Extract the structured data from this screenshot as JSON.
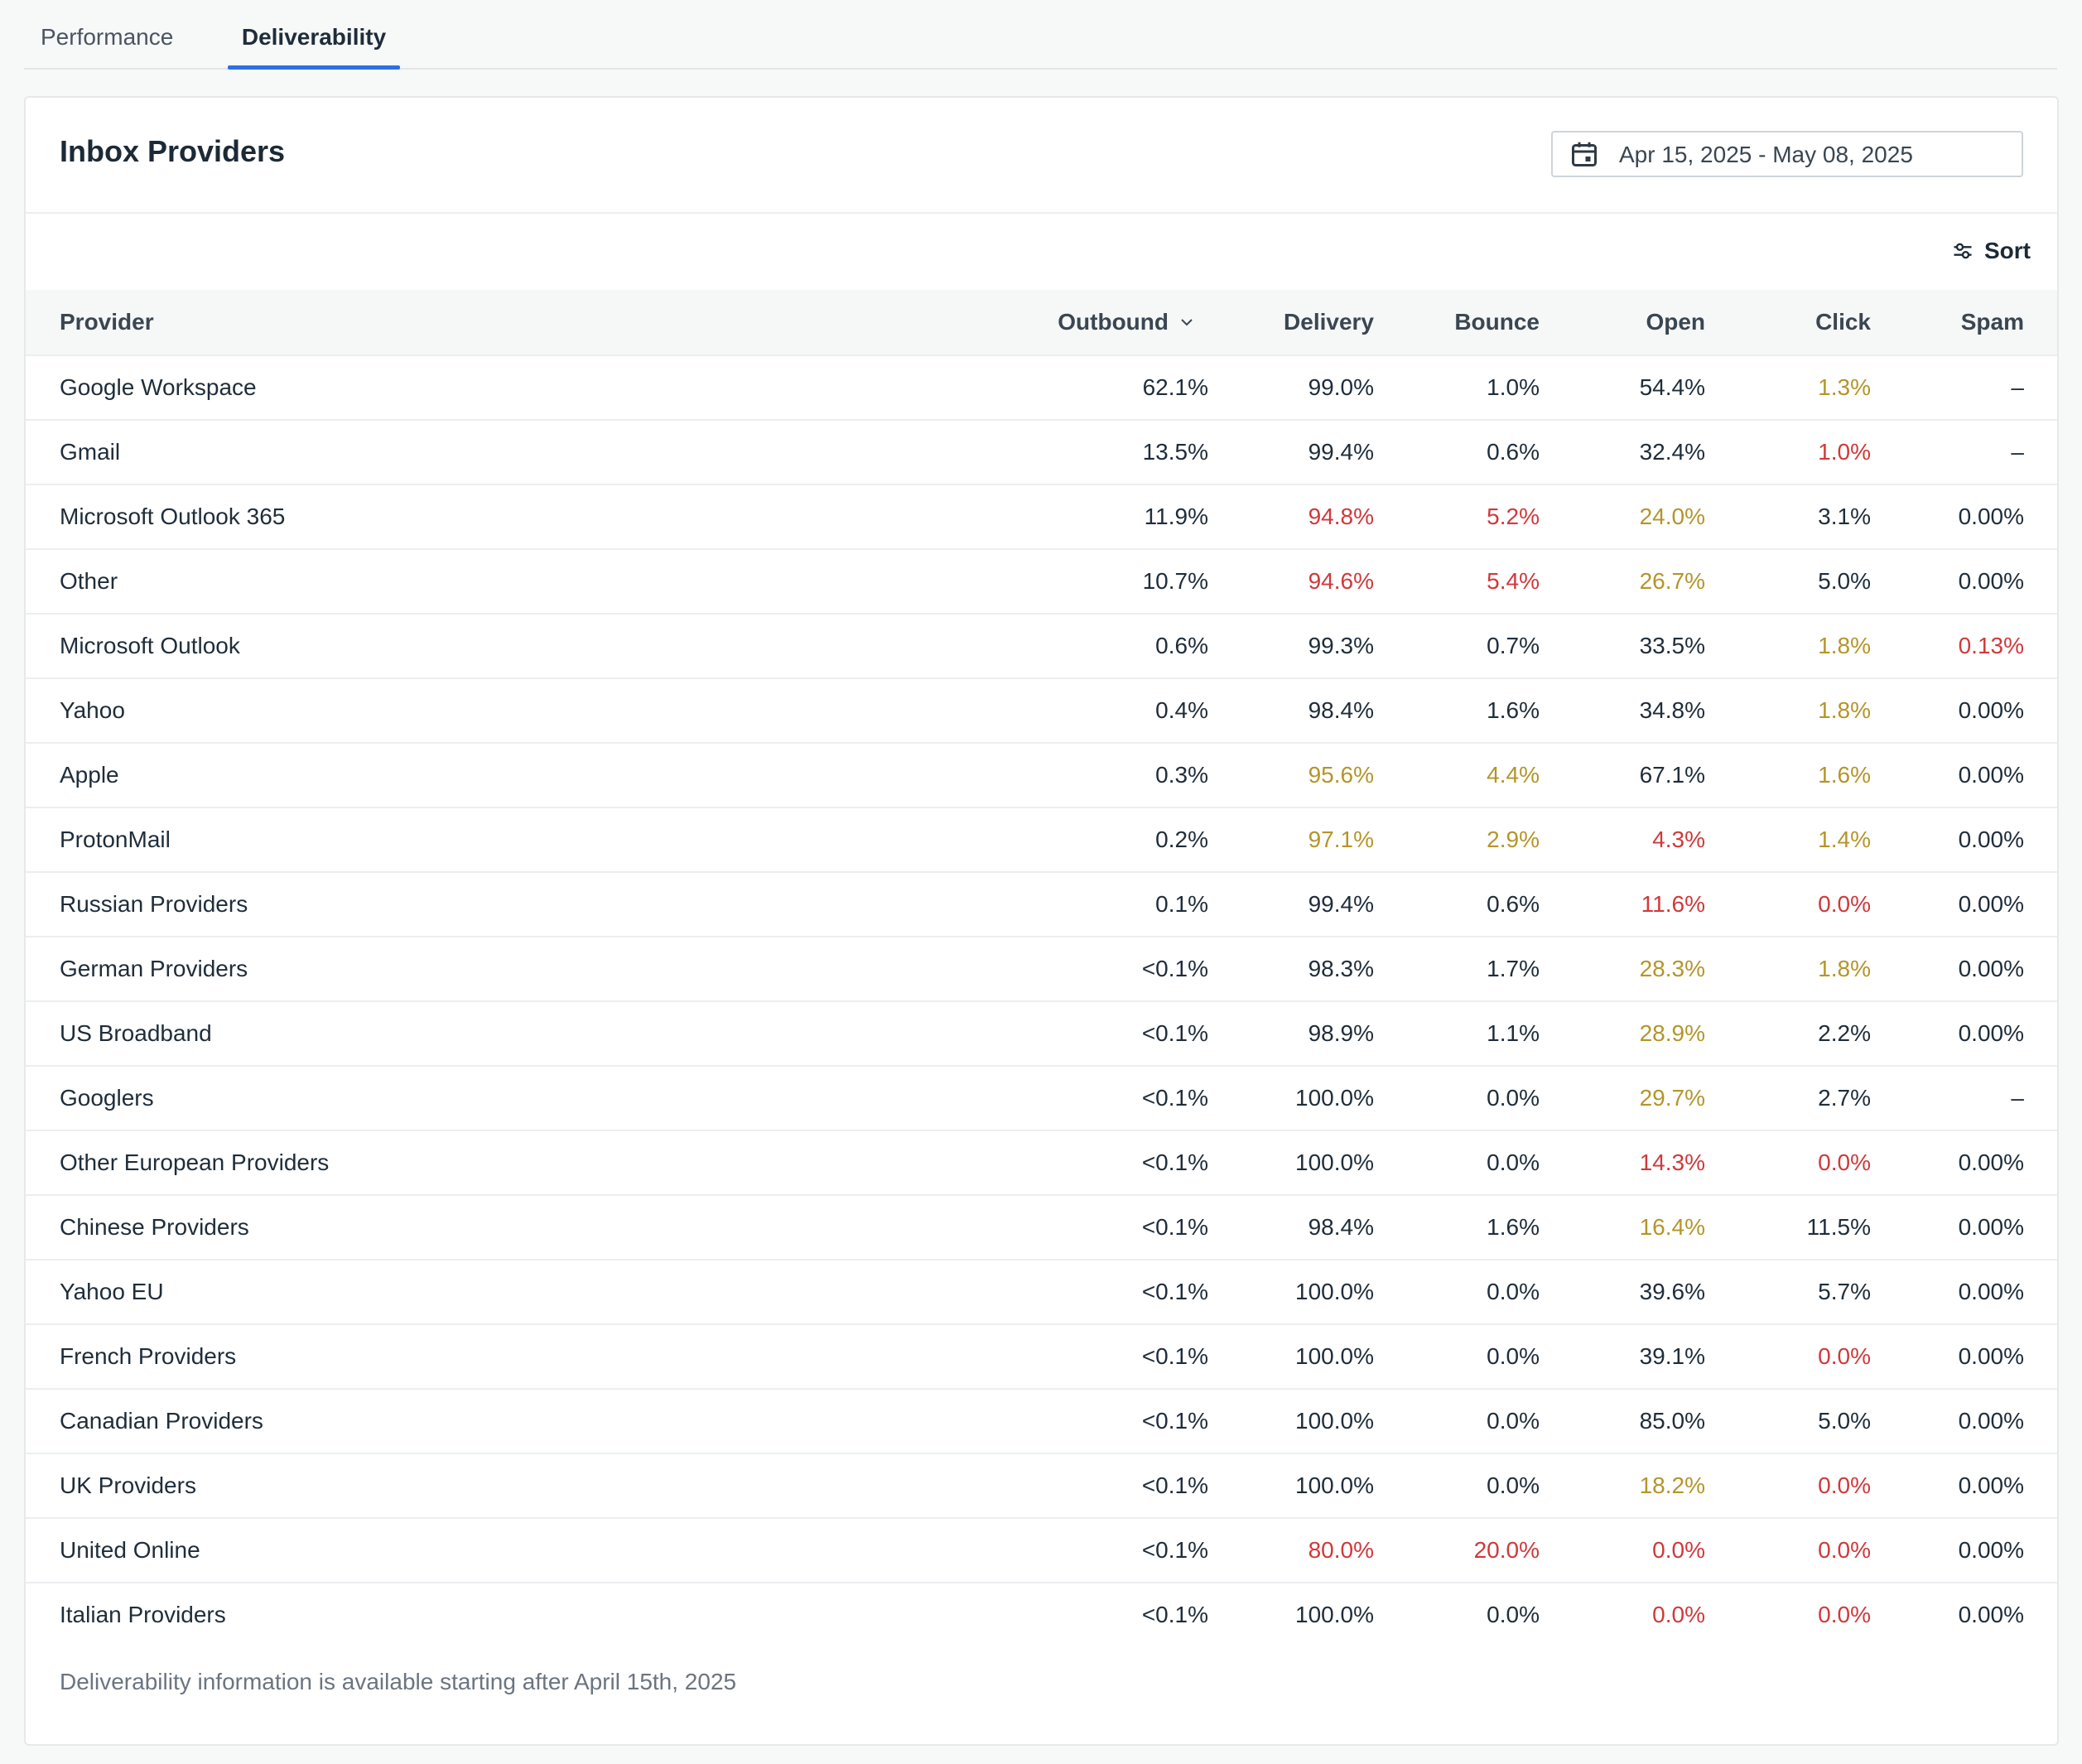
{
  "tabs": [
    {
      "label": "Performance",
      "active": false
    },
    {
      "label": "Deliverability",
      "active": true
    }
  ],
  "card": {
    "title": "Inbox Providers",
    "date_range": "Apr 15, 2025 - May 08, 2025",
    "date_range_icon": "calendar-icon",
    "sort_label": "Sort",
    "sort_icon": "sliders-icon",
    "footer_note": "Deliverability information is available starting after April 15th, 2025"
  },
  "colors": {
    "tab_active_underline": "#2f6fe4",
    "value_normal": "#1f2d3a",
    "value_warning": "#b4952a",
    "value_bad": "#d0393b"
  },
  "table": {
    "columns": {
      "provider": "Provider",
      "outbound": "Outbound",
      "delivery": "Delivery",
      "bounce": "Bounce",
      "open": "Open",
      "click": "Click",
      "spam": "Spam"
    },
    "sorted_by": "outbound",
    "sort_icon": "chevron-down-icon",
    "rows": [
      {
        "provider": "Google Workspace",
        "outbound": "62.1%",
        "delivery": "99.0%",
        "bounce": "1.0%",
        "open": "54.4%",
        "click": "1.3%",
        "spam": "–",
        "status": {
          "delivery": "good",
          "bounce": "good",
          "open": "good",
          "click": "warn",
          "spam": "good"
        }
      },
      {
        "provider": "Gmail",
        "outbound": "13.5%",
        "delivery": "99.4%",
        "bounce": "0.6%",
        "open": "32.4%",
        "click": "1.0%",
        "spam": "–",
        "status": {
          "delivery": "good",
          "bounce": "good",
          "open": "good",
          "click": "bad",
          "spam": "good"
        }
      },
      {
        "provider": "Microsoft Outlook 365",
        "outbound": "11.9%",
        "delivery": "94.8%",
        "bounce": "5.2%",
        "open": "24.0%",
        "click": "3.1%",
        "spam": "0.00%",
        "status": {
          "delivery": "bad",
          "bounce": "bad",
          "open": "warn",
          "click": "good",
          "spam": "good"
        }
      },
      {
        "provider": "Other",
        "outbound": "10.7%",
        "delivery": "94.6%",
        "bounce": "5.4%",
        "open": "26.7%",
        "click": "5.0%",
        "spam": "0.00%",
        "status": {
          "delivery": "bad",
          "bounce": "bad",
          "open": "warn",
          "click": "good",
          "spam": "good"
        }
      },
      {
        "provider": "Microsoft Outlook",
        "outbound": "0.6%",
        "delivery": "99.3%",
        "bounce": "0.7%",
        "open": "33.5%",
        "click": "1.8%",
        "spam": "0.13%",
        "status": {
          "delivery": "good",
          "bounce": "good",
          "open": "good",
          "click": "warn",
          "spam": "bad"
        }
      },
      {
        "provider": "Yahoo",
        "outbound": "0.4%",
        "delivery": "98.4%",
        "bounce": "1.6%",
        "open": "34.8%",
        "click": "1.8%",
        "spam": "0.00%",
        "status": {
          "delivery": "good",
          "bounce": "good",
          "open": "good",
          "click": "warn",
          "spam": "good"
        }
      },
      {
        "provider": "Apple",
        "outbound": "0.3%",
        "delivery": "95.6%",
        "bounce": "4.4%",
        "open": "67.1%",
        "click": "1.6%",
        "spam": "0.00%",
        "status": {
          "delivery": "warn",
          "bounce": "warn",
          "open": "good",
          "click": "warn",
          "spam": "good"
        }
      },
      {
        "provider": "ProtonMail",
        "outbound": "0.2%",
        "delivery": "97.1%",
        "bounce": "2.9%",
        "open": "4.3%",
        "click": "1.4%",
        "spam": "0.00%",
        "status": {
          "delivery": "warn",
          "bounce": "warn",
          "open": "bad",
          "click": "warn",
          "spam": "good"
        }
      },
      {
        "provider": "Russian Providers",
        "outbound": "0.1%",
        "delivery": "99.4%",
        "bounce": "0.6%",
        "open": "11.6%",
        "click": "0.0%",
        "spam": "0.00%",
        "status": {
          "delivery": "good",
          "bounce": "good",
          "open": "bad",
          "click": "bad",
          "spam": "good"
        }
      },
      {
        "provider": "German Providers",
        "outbound": "<0.1%",
        "delivery": "98.3%",
        "bounce": "1.7%",
        "open": "28.3%",
        "click": "1.8%",
        "spam": "0.00%",
        "status": {
          "delivery": "good",
          "bounce": "good",
          "open": "warn",
          "click": "warn",
          "spam": "good"
        }
      },
      {
        "provider": "US Broadband",
        "outbound": "<0.1%",
        "delivery": "98.9%",
        "bounce": "1.1%",
        "open": "28.9%",
        "click": "2.2%",
        "spam": "0.00%",
        "status": {
          "delivery": "good",
          "bounce": "good",
          "open": "warn",
          "click": "good",
          "spam": "good"
        }
      },
      {
        "provider": "Googlers",
        "outbound": "<0.1%",
        "delivery": "100.0%",
        "bounce": "0.0%",
        "open": "29.7%",
        "click": "2.7%",
        "spam": "–",
        "status": {
          "delivery": "good",
          "bounce": "good",
          "open": "warn",
          "click": "good",
          "spam": "good"
        }
      },
      {
        "provider": "Other European Providers",
        "outbound": "<0.1%",
        "delivery": "100.0%",
        "bounce": "0.0%",
        "open": "14.3%",
        "click": "0.0%",
        "spam": "0.00%",
        "status": {
          "delivery": "good",
          "bounce": "good",
          "open": "bad",
          "click": "bad",
          "spam": "good"
        }
      },
      {
        "provider": "Chinese Providers",
        "outbound": "<0.1%",
        "delivery": "98.4%",
        "bounce": "1.6%",
        "open": "16.4%",
        "click": "11.5%",
        "spam": "0.00%",
        "status": {
          "delivery": "good",
          "bounce": "good",
          "open": "warn",
          "click": "good",
          "spam": "good"
        }
      },
      {
        "provider": "Yahoo EU",
        "outbound": "<0.1%",
        "delivery": "100.0%",
        "bounce": "0.0%",
        "open": "39.6%",
        "click": "5.7%",
        "spam": "0.00%",
        "status": {
          "delivery": "good",
          "bounce": "good",
          "open": "good",
          "click": "good",
          "spam": "good"
        }
      },
      {
        "provider": "French Providers",
        "outbound": "<0.1%",
        "delivery": "100.0%",
        "bounce": "0.0%",
        "open": "39.1%",
        "click": "0.0%",
        "spam": "0.00%",
        "status": {
          "delivery": "good",
          "bounce": "good",
          "open": "good",
          "click": "bad",
          "spam": "good"
        }
      },
      {
        "provider": "Canadian Providers",
        "outbound": "<0.1%",
        "delivery": "100.0%",
        "bounce": "0.0%",
        "open": "85.0%",
        "click": "5.0%",
        "spam": "0.00%",
        "status": {
          "delivery": "good",
          "bounce": "good",
          "open": "good",
          "click": "good",
          "spam": "good"
        }
      },
      {
        "provider": "UK Providers",
        "outbound": "<0.1%",
        "delivery": "100.0%",
        "bounce": "0.0%",
        "open": "18.2%",
        "click": "0.0%",
        "spam": "0.00%",
        "status": {
          "delivery": "good",
          "bounce": "good",
          "open": "warn",
          "click": "bad",
          "spam": "good"
        }
      },
      {
        "provider": "United Online",
        "outbound": "<0.1%",
        "delivery": "80.0%",
        "bounce": "20.0%",
        "open": "0.0%",
        "click": "0.0%",
        "spam": "0.00%",
        "status": {
          "delivery": "bad",
          "bounce": "bad",
          "open": "bad",
          "click": "bad",
          "spam": "good"
        }
      },
      {
        "provider": "Italian Providers",
        "outbound": "<0.1%",
        "delivery": "100.0%",
        "bounce": "0.0%",
        "open": "0.0%",
        "click": "0.0%",
        "spam": "0.00%",
        "status": {
          "delivery": "good",
          "bounce": "good",
          "open": "bad",
          "click": "bad",
          "spam": "good"
        }
      }
    ]
  }
}
